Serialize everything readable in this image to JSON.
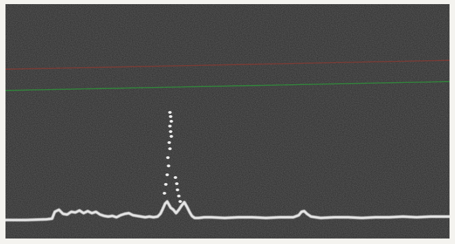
{
  "photo": {
    "description_colors": {
      "screen": "#262626",
      "frame": "#f4f3ef",
      "trace": "#e6e6e6",
      "upper_reference_line": "#8a3a32",
      "lower_reference_line": "#2f8f3a"
    }
  }
}
